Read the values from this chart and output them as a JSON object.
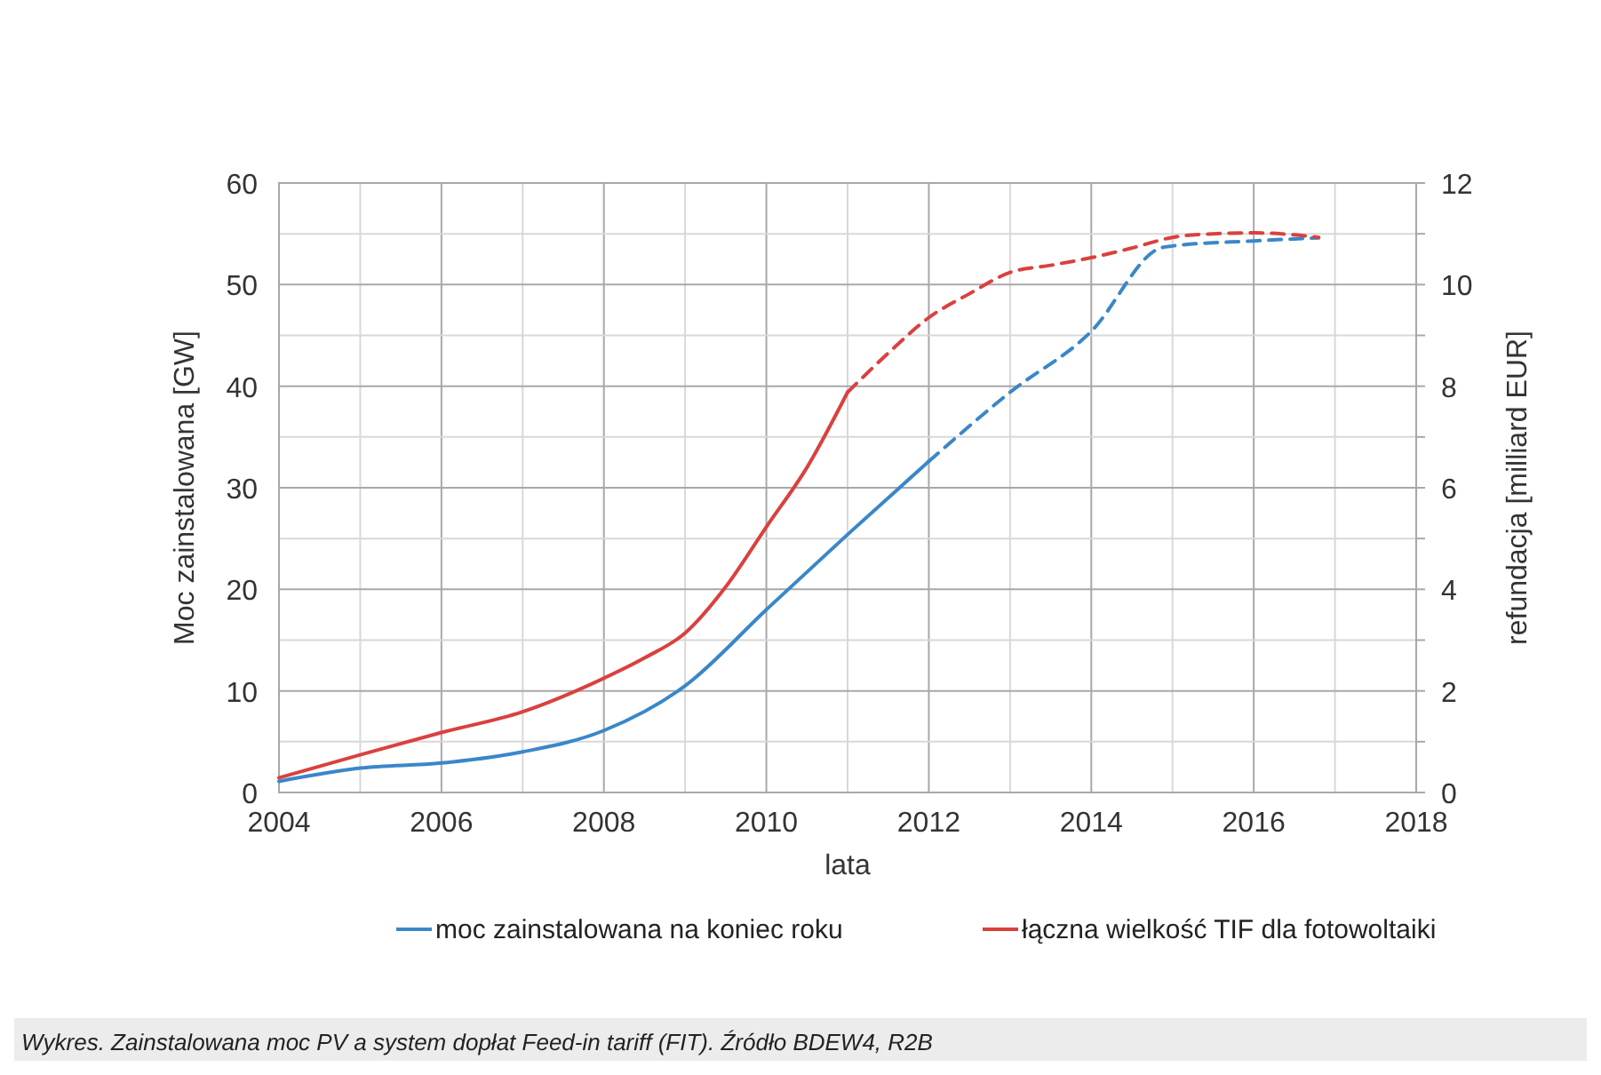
{
  "chart_data": {
    "type": "line",
    "xlabel": "lata",
    "ylabel": "Moc zainstalowana [GW]",
    "y2label": "refundacja [milliard EUR]",
    "xlim": [
      2004,
      2018
    ],
    "xticks": [
      2004,
      {
        "value": 2005,
        "label": null
      },
      2006,
      {
        "value": 2007,
        "label": null
      },
      2008,
      {
        "value": 2009,
        "label": null
      },
      2010,
      {
        "value": 2011,
        "label": null
      },
      2012,
      {
        "value": 2013,
        "label": null
      },
      2014,
      {
        "value": 2015,
        "label": null
      },
      2016,
      {
        "value": 2017,
        "label": null
      },
      2018
    ],
    "ylim": [
      0,
      60
    ],
    "yticks": [
      0,
      {
        "value": 5,
        "label": null
      },
      10,
      {
        "value": 15,
        "label": null
      },
      20,
      {
        "value": 25,
        "label": null
      },
      30,
      {
        "value": 35,
        "label": null
      },
      40,
      {
        "value": 45,
        "label": null
      },
      50,
      {
        "value": 55,
        "label": null
      },
      60
    ],
    "y2lim": [
      0,
      12
    ],
    "y2ticks": [
      0,
      {
        "value": 1,
        "label": null
      },
      2,
      {
        "value": 3,
        "label": null
      },
      4,
      {
        "value": 5,
        "label": null
      },
      6,
      {
        "value": 7,
        "label": null
      },
      8,
      {
        "value": 9,
        "label": null
      },
      10,
      {
        "value": 11,
        "label": null
      },
      12
    ],
    "grid": true,
    "legend": "bottom",
    "series": [
      {
        "name": "moc zainstalowana na koniec roku",
        "color": "#3a87c8",
        "line_style": "solid",
        "x": [
          2004,
          2005,
          2006,
          2007,
          2008,
          2009,
          2010,
          2011,
          2012
        ],
        "values": [
          1.1,
          2.4,
          2.9,
          4.0,
          6.1,
          10.5,
          18.0,
          25.4,
          32.6
        ]
      },
      {
        "color": "#3a87c8",
        "line_style": "dashed",
        "x": [
          2012,
          2013,
          2014,
          2014.85,
          2015,
          2016,
          2016.8
        ],
        "values": [
          32.6,
          39.4,
          45.4,
          53.6,
          53.8,
          54.3,
          54.6
        ]
      },
      {
        "name": "łączna wielkość TIF dla fotowoltaiki",
        "color": "#d9413e",
        "line_style": "solid",
        "axis": "y2",
        "x": [
          2004,
          2005,
          2006,
          2007,
          2008,
          2008.5,
          2009,
          2009.5,
          2010,
          2010.5,
          2011
        ],
        "values": [
          0.29,
          0.74,
          1.18,
          1.59,
          2.25,
          2.65,
          3.14,
          4.05,
          5.23,
          6.4,
          7.88
        ]
      },
      {
        "color": "#d9413e",
        "line_style": "dashed",
        "axis": "y2",
        "x": [
          2011,
          2011.5,
          2012,
          2012.5,
          2013,
          2013.5,
          2014,
          2014.5,
          2015,
          2015.5,
          2016,
          2016.5,
          2016.8
        ],
        "values": [
          7.88,
          8.65,
          9.35,
          9.82,
          10.24,
          10.38,
          10.53,
          10.72,
          10.93,
          11.0,
          11.02,
          10.98,
          10.93
        ]
      }
    ],
    "annotations": [
      "Wykres. Zainstalowana moc PV a system dopłat Feed-in tariff (FIT). Źródło BDEW4, R2B"
    ]
  }
}
